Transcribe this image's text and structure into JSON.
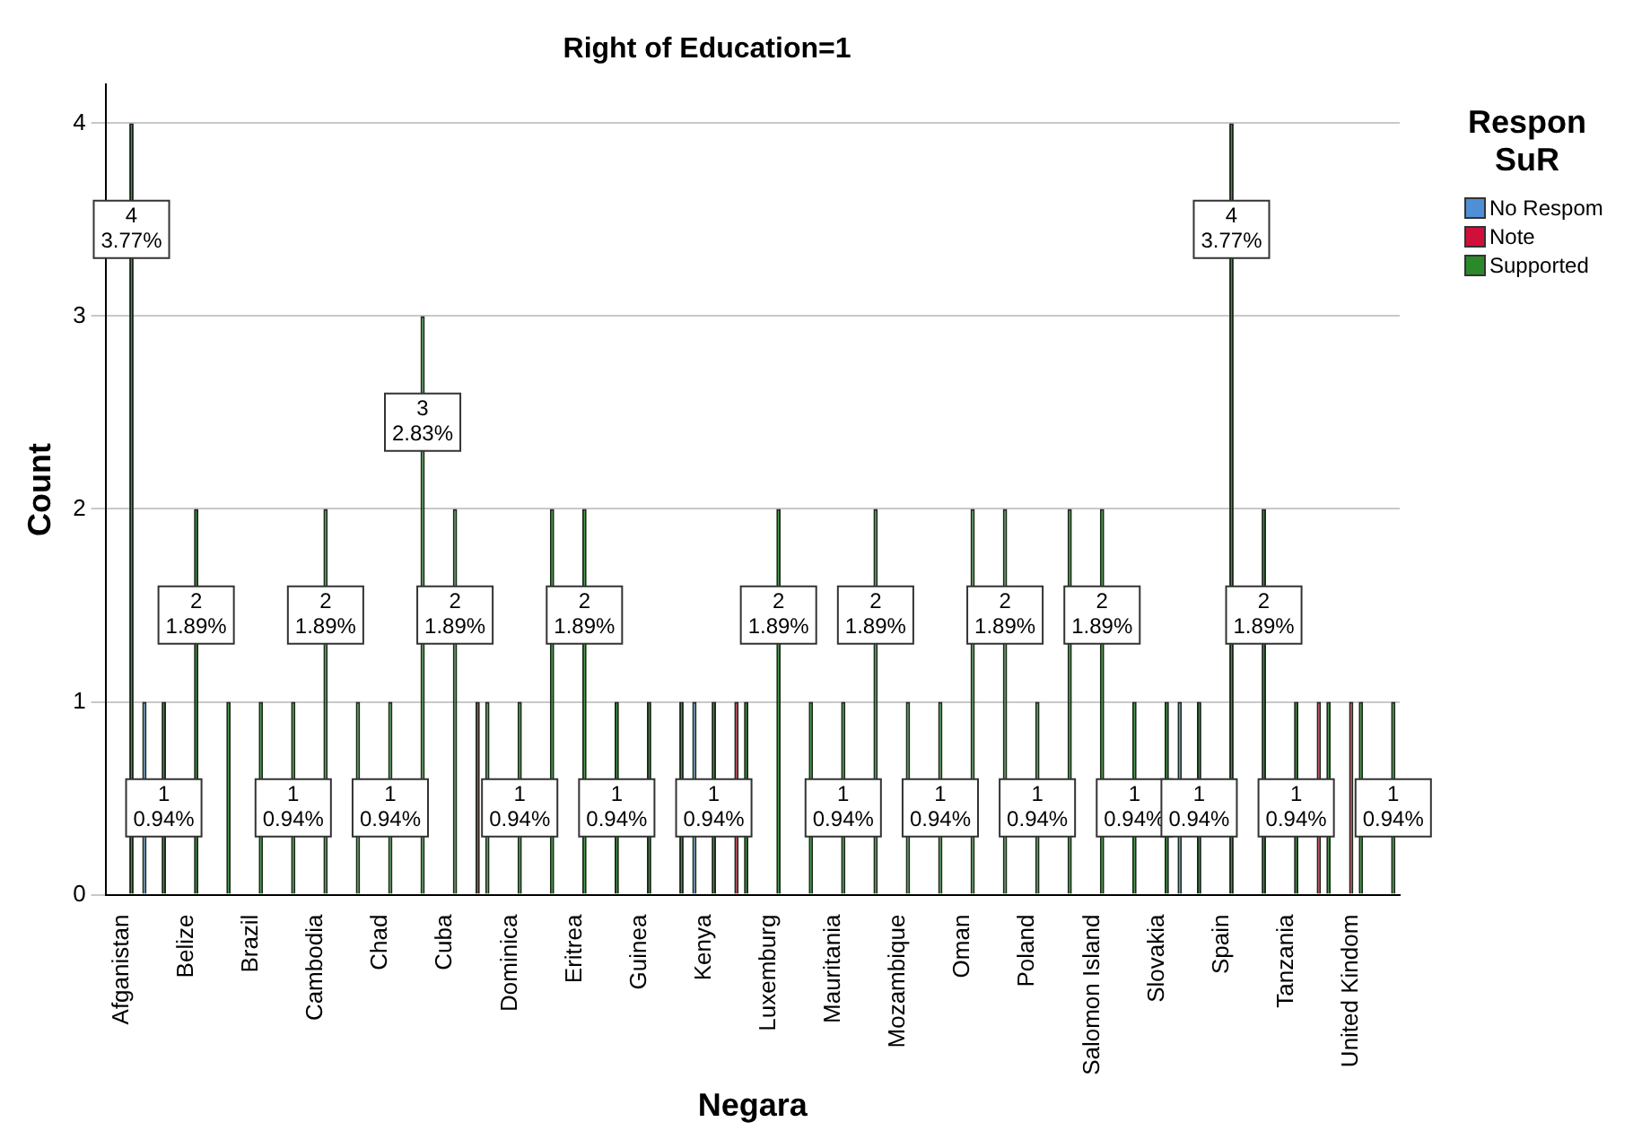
{
  "chart_data": {
    "type": "bar",
    "title": "Right of Education=1",
    "xlabel": "Negara",
    "ylabel": "Count",
    "legend_title": "Respon SuR",
    "legend": "top right",
    "grid": "y",
    "ylim": [
      0,
      4.2
    ],
    "yticks": [
      0,
      1,
      2,
      3,
      4
    ],
    "categories": [
      "Afganistan",
      null,
      "Belize",
      null,
      "Brazil",
      null,
      "Cambodia",
      null,
      "Chad",
      null,
      "Cuba",
      null,
      "Dominica",
      null,
      "Eritrea",
      null,
      "Guinea",
      null,
      "Kenya",
      null,
      "Luxemburg",
      null,
      "Mauritania",
      null,
      "Mozambique",
      null,
      "Oman",
      null,
      "Poland",
      null,
      "Salomon Island",
      null,
      "Slovakia",
      null,
      "Spain",
      null,
      "Tanzania",
      null,
      "United Kindom",
      null
    ],
    "series": [
      {
        "name": "No Respom",
        "color": "#4f8fd6",
        "values": [
          null,
          1,
          null,
          null,
          null,
          null,
          null,
          null,
          null,
          null,
          null,
          null,
          null,
          null,
          null,
          null,
          null,
          null,
          1,
          null,
          null,
          null,
          null,
          null,
          null,
          null,
          null,
          null,
          null,
          null,
          null,
          null,
          null,
          1,
          null,
          null,
          null,
          null,
          null,
          null
        ]
      },
      {
        "name": "Note",
        "color": "#d0103a",
        "values": [
          null,
          null,
          null,
          null,
          null,
          null,
          null,
          null,
          null,
          null,
          null,
          1,
          null,
          null,
          null,
          null,
          null,
          null,
          null,
          1,
          null,
          null,
          null,
          null,
          null,
          null,
          null,
          null,
          null,
          null,
          null,
          null,
          null,
          null,
          null,
          null,
          null,
          1,
          1,
          null
        ]
      },
      {
        "name": "Supported",
        "color": "#2a8a2a",
        "values": [
          4,
          1,
          2,
          1,
          1,
          1,
          2,
          1,
          1,
          3,
          2,
          1,
          1,
          2,
          2,
          1,
          1,
          1,
          1,
          1,
          2,
          1,
          1,
          2,
          1,
          1,
          2,
          2,
          1,
          2,
          2,
          1,
          1,
          1,
          4,
          2,
          1,
          1,
          1,
          1
        ],
        "value_labels": [
          "4\n3.77%",
          "1\n0.94%",
          "2\n1.89%",
          null,
          null,
          "1\n0.94%",
          "2\n1.89%",
          null,
          "1\n0.94%",
          "3\n2.83%",
          "2\n1.89%",
          null,
          "1\n0.94%",
          null,
          "2\n1.89%",
          "1\n0.94%",
          null,
          null,
          "1\n0.94%",
          null,
          "2\n1.89%",
          null,
          "1\n0.94%",
          "2\n1.89%",
          null,
          "1\n0.94%",
          null,
          "2\n1.89%",
          "1\n0.94%",
          null,
          "2\n1.89%",
          "1\n0.94%",
          null,
          "1\n0.94%",
          "4\n3.77%",
          "2\n1.89%",
          "1\n0.94%",
          null,
          null,
          "1\n0.94%"
        ]
      }
    ]
  }
}
